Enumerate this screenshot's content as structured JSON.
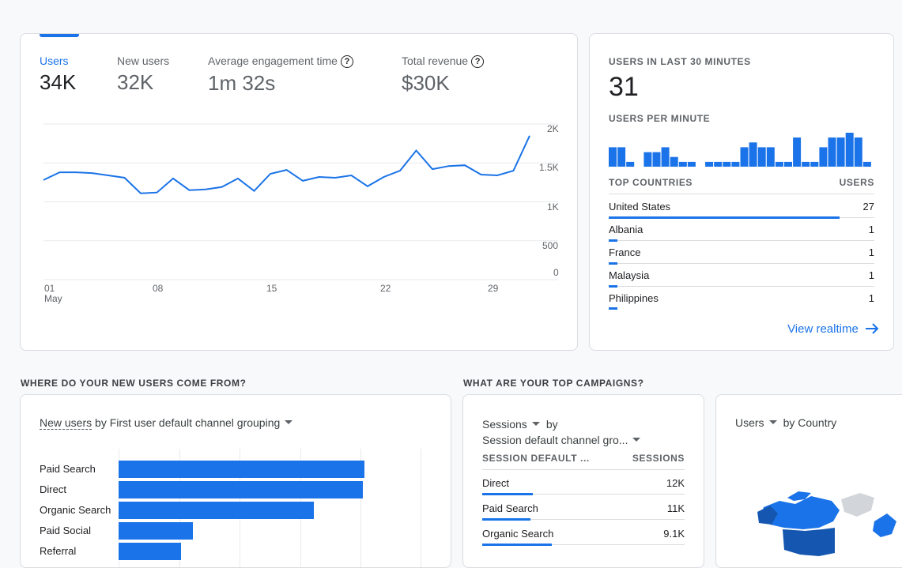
{
  "overview": {
    "metrics": [
      {
        "label": "Users",
        "value": "34K"
      },
      {
        "label": "New users",
        "value": "32K"
      },
      {
        "label": "Average engagement time",
        "value": "1m 32s"
      },
      {
        "label": "Total revenue",
        "value": "$30K"
      }
    ],
    "help_glyph": "?",
    "y_ticks": [
      "2K",
      "1.5K",
      "1K",
      "500",
      "0"
    ],
    "x_ticks": [
      "01",
      "08",
      "15",
      "22",
      "29"
    ],
    "x_month": "May"
  },
  "chart_data": [
    {
      "type": "line",
      "x": [
        1,
        2,
        3,
        4,
        5,
        6,
        7,
        8,
        9,
        10,
        11,
        12,
        13,
        14,
        15,
        16,
        17,
        18,
        19,
        20,
        21,
        22,
        23,
        24,
        25,
        26,
        27,
        28,
        29,
        30,
        31
      ],
      "series": [
        {
          "values": [
            1280,
            1380,
            1380,
            1370,
            1340,
            1310,
            1110,
            1120,
            1300,
            1150,
            1160,
            1190,
            1300,
            1140,
            1360,
            1410,
            1270,
            1320,
            1310,
            1340,
            1200,
            1320,
            1400,
            1660,
            1420,
            1460,
            1470,
            1350,
            1340,
            1400,
            1850
          ]
        }
      ],
      "ylim": [
        0,
        2000
      ],
      "yticks": [
        "2K",
        "1.5K",
        "1K",
        "500",
        "0"
      ],
      "xticks": [
        "01",
        "08",
        "15",
        "22",
        "29"
      ],
      "xlabel": "May"
    },
    {
      "type": "bar",
      "title": "USERS PER MINUTE",
      "values": [
        4,
        4,
        1,
        0,
        3,
        3,
        4,
        2,
        1,
        1,
        0,
        1,
        1,
        1,
        1,
        4,
        5,
        4,
        4,
        1,
        1,
        6,
        1,
        1,
        4,
        6,
        6,
        7,
        6,
        1
      ]
    },
    {
      "type": "bar",
      "orientation": "horizontal",
      "categories": [
        "Paid Search",
        "Direct",
        "Organic Search",
        "Paid Social",
        "Referral"
      ],
      "values": [
        12200,
        12100,
        9700,
        3700,
        3100
      ]
    }
  ],
  "realtime": {
    "title": "USERS IN LAST 30 MINUTES",
    "count": "31",
    "per_minute_label": "USERS PER MINUTE",
    "countries_header": "TOP COUNTRIES",
    "users_header": "USERS",
    "countries": [
      {
        "name": "United States",
        "value": "27",
        "share": 0.87
      },
      {
        "name": "Albania",
        "value": "1",
        "share": 0.03
      },
      {
        "name": "France",
        "value": "1",
        "share": 0.03
      },
      {
        "name": "Malaysia",
        "value": "1",
        "share": 0.03
      },
      {
        "name": "Philippines",
        "value": "1",
        "share": 0.03
      }
    ],
    "link": "View realtime"
  },
  "sections": {
    "new_users_title": "WHERE DO YOUR NEW USERS COME FROM?",
    "campaigns_title": "WHAT ARE YOUR TOP CAMPAIGNS?"
  },
  "channel_card": {
    "metric": "New users",
    "rest": " by First user default channel grouping"
  },
  "campaign_card": {
    "metric": "Sessions",
    "by": "by",
    "dimension": "Session default channel gro...",
    "col1": "SESSION DEFAULT ...",
    "col2": "SESSIONS",
    "rows": [
      {
        "name": "Direct",
        "value": "12K",
        "share": 0.32
      },
      {
        "name": "Paid Search",
        "value": "11K",
        "share": 0.3
      },
      {
        "name": "Organic Search",
        "value": "9.1K",
        "share": 0.25
      }
    ]
  },
  "country_card": {
    "metric": "Users",
    "rest": "by Country"
  },
  "colors": {
    "accent": "#1a73e8",
    "map_dark": "#1557b0",
    "map_light": "#d2d5d9"
  }
}
